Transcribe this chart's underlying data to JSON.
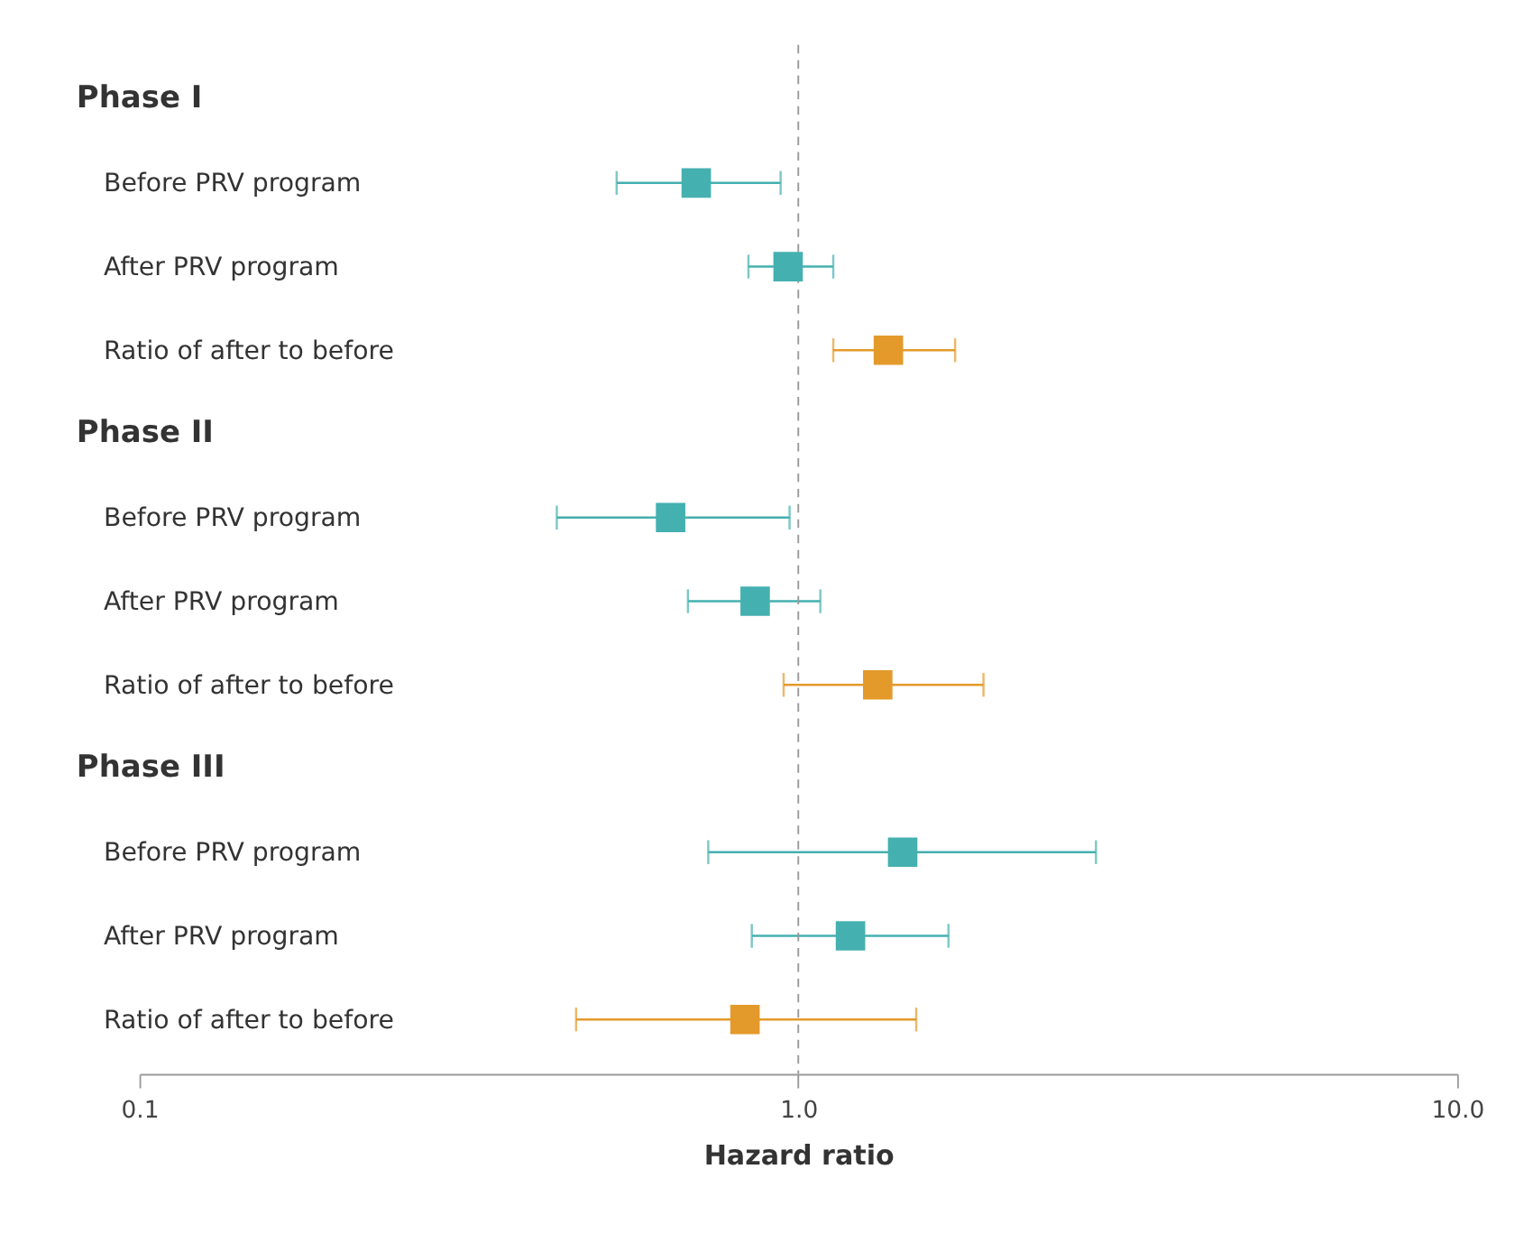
{
  "chart_data": {
    "type": "scatter",
    "orientation": "horizontal",
    "marker": "square",
    "grid": false,
    "categories": [
      "Phase I",
      "Before PRV program",
      "After PRV program",
      "Ratio of after to before",
      "Phase II",
      "Before PRV program",
      "After PRV program",
      "Ratio of after to before",
      "Phase III",
      "Before PRV program",
      "After PRV program",
      "Ratio of after to before"
    ],
    "values": [
      null,
      0.7,
      0.965,
      1.37,
      null,
      0.64,
      0.86,
      1.32,
      null,
      1.44,
      1.2,
      0.83
    ],
    "errors": [
      null,
      [
        0.53,
        0.94
      ],
      [
        0.84,
        1.13
      ],
      [
        1.13,
        1.73
      ],
      null,
      [
        0.43,
        0.97
      ],
      [
        0.68,
        1.08
      ],
      [
        0.95,
        1.91
      ],
      null,
      [
        0.73,
        2.83
      ],
      [
        0.85,
        1.69
      ],
      [
        0.46,
        1.51
      ]
    ],
    "colors": [
      null,
      "#45b0b0",
      "#45b0b0",
      "#e39a2b",
      null,
      "#45b0b0",
      "#45b0b0",
      "#e39a2b",
      null,
      "#45b0b0",
      "#45b0b0",
      "#e39a2b"
    ],
    "log": "x",
    "xlim": [
      0.1,
      10
    ],
    "xticks": [
      0.1,
      {
        "value": 1,
        "label": "1.0"
      },
      {
        "value": 10,
        "label": "10.0"
      }
    ],
    "xlabel": "Hazard ratio",
    "ref_lines": [
      {
        "axis": "x",
        "value": 1,
        "color": "#999999",
        "line_style": "dashed"
      }
    ]
  }
}
